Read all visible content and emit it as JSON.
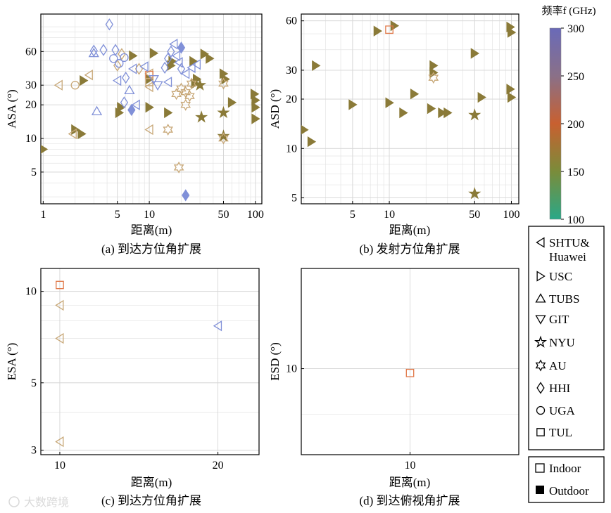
{
  "figure": {
    "colorbar": {
      "title": "频率f (GHz)",
      "ticks": [
        100,
        150,
        200,
        250,
        300
      ]
    },
    "marker_legend": [
      {
        "key": "shtu",
        "line1": "SHTU&",
        "line2": "Huawei"
      },
      {
        "key": "usc",
        "line1": "USC"
      },
      {
        "key": "tubs",
        "line1": "TUBS"
      },
      {
        "key": "git",
        "line1": "GIT"
      },
      {
        "key": "nyu",
        "line1": "NYU"
      },
      {
        "key": "au",
        "line1": "AU"
      },
      {
        "key": "hhi",
        "line1": "HHI"
      },
      {
        "key": "uga",
        "line1": "UGA"
      },
      {
        "key": "tul",
        "line1": "TUL"
      }
    ],
    "env_legend": [
      {
        "key": "indoor",
        "label": "Indoor"
      },
      {
        "key": "outdoor",
        "label": "Outdoor"
      }
    ],
    "watermark": "大数跨境"
  },
  "colors": {
    "olive": "#8a7a38",
    "blue": "#8090d8",
    "orange": "#e07848",
    "tan": "#c8a878"
  },
  "chart_data": [
    {
      "id": "a",
      "type": "scatter",
      "xscale": "log",
      "yscale": "log",
      "caption": "(a) 到达方位角扩展",
      "xlabel": "距离(m)",
      "ylabel": "ASA (°)",
      "xlim": [
        0.95,
        115
      ],
      "ylim": [
        2.6,
        130
      ],
      "xticks": [
        1,
        5,
        10,
        50,
        100
      ],
      "xtick_labels": [
        "1",
        "5",
        "10",
        "50",
        "100"
      ],
      "yticks": [
        5,
        10,
        20,
        30,
        60
      ],
      "ytick_labels": [
        "5",
        "10",
        "20",
        "30",
        "60"
      ],
      "points": [
        {
          "x": 1,
          "y": 8,
          "m": "usc",
          "c": "olive",
          "f": true
        },
        {
          "x": 2,
          "y": 12,
          "m": "usc",
          "c": "olive",
          "f": true
        },
        {
          "x": 2.3,
          "y": 11,
          "m": "usc",
          "c": "olive",
          "f": true
        },
        {
          "x": 2.4,
          "y": 33,
          "m": "usc",
          "c": "olive",
          "f": true
        },
        {
          "x": 5.2,
          "y": 17,
          "m": "usc",
          "c": "olive",
          "f": true
        },
        {
          "x": 5.4,
          "y": 19,
          "m": "usc",
          "c": "olive",
          "f": true
        },
        {
          "x": 7,
          "y": 55,
          "m": "usc",
          "c": "olive",
          "f": true
        },
        {
          "x": 10,
          "y": 19,
          "m": "usc",
          "c": "olive",
          "f": true
        },
        {
          "x": 11,
          "y": 58,
          "m": "usc",
          "c": "olive",
          "f": true
        },
        {
          "x": 15,
          "y": 17,
          "m": "usc",
          "c": "olive",
          "f": true
        },
        {
          "x": 16,
          "y": 45,
          "m": "usc",
          "c": "olive",
          "f": true
        },
        {
          "x": 16.5,
          "y": 49,
          "m": "usc",
          "c": "olive",
          "f": true
        },
        {
          "x": 26,
          "y": 49,
          "m": "usc",
          "c": "olive",
          "f": true
        },
        {
          "x": 27,
          "y": 31,
          "m": "usc",
          "c": "olive",
          "f": true
        },
        {
          "x": 28,
          "y": 34,
          "m": "usc",
          "c": "olive",
          "f": true
        },
        {
          "x": 33,
          "y": 57,
          "m": "usc",
          "c": "olive",
          "f": true
        },
        {
          "x": 37,
          "y": 52,
          "m": "usc",
          "c": "olive",
          "f": true
        },
        {
          "x": 50,
          "y": 38,
          "m": "usc",
          "c": "olive",
          "f": true
        },
        {
          "x": 52,
          "y": 34,
          "m": "usc",
          "c": "olive",
          "f": true
        },
        {
          "x": 60,
          "y": 21,
          "m": "usc",
          "c": "olive",
          "f": true
        },
        {
          "x": 98,
          "y": 25,
          "m": "usc",
          "c": "olive",
          "f": true
        },
        {
          "x": 100,
          "y": 22,
          "m": "usc",
          "c": "olive",
          "f": true
        },
        {
          "x": 100,
          "y": 19,
          "m": "usc",
          "c": "olive",
          "f": true
        },
        {
          "x": 100,
          "y": 15,
          "m": "usc",
          "c": "olive",
          "f": true
        },
        {
          "x": 10,
          "y": 34,
          "m": "usc",
          "c": "olive",
          "f": true
        },
        {
          "x": 30,
          "y": 30,
          "m": "nyu",
          "c": "olive",
          "f": true
        },
        {
          "x": 31,
          "y": 15.5,
          "m": "nyu",
          "c": "olive",
          "f": true
        },
        {
          "x": 50,
          "y": 17,
          "m": "nyu",
          "c": "olive",
          "f": true
        },
        {
          "x": 50,
          "y": 10.5,
          "m": "nyu",
          "c": "olive",
          "f": true
        },
        {
          "x": 1.4,
          "y": 30,
          "m": "shtu",
          "c": "tan",
          "f": false
        },
        {
          "x": 1.9,
          "y": 11,
          "m": "shtu",
          "c": "tan",
          "f": false
        },
        {
          "x": 2.7,
          "y": 37,
          "m": "shtu",
          "c": "tan",
          "f": false
        },
        {
          "x": 10,
          "y": 12,
          "m": "shtu",
          "c": "tan",
          "f": false
        },
        {
          "x": 10,
          "y": 38,
          "m": "shtu",
          "c": "tan",
          "f": false
        },
        {
          "x": 10,
          "y": 29,
          "m": "shtu",
          "c": "tan",
          "f": false
        },
        {
          "x": 5,
          "y": 45,
          "m": "hhi",
          "c": "tan",
          "f": false
        },
        {
          "x": 5.5,
          "y": 57,
          "m": "hhi",
          "c": "tan",
          "f": false
        },
        {
          "x": 8,
          "y": 42,
          "m": "hhi",
          "c": "tan",
          "f": false
        },
        {
          "x": 2,
          "y": 30,
          "m": "uga",
          "c": "tan",
          "f": false
        },
        {
          "x": 10,
          "y": 37,
          "m": "tul",
          "c": "orange",
          "f": false
        },
        {
          "x": 10,
          "y": 32,
          "m": "tul",
          "c": "tan",
          "f": false
        },
        {
          "x": 18,
          "y": 25,
          "m": "au",
          "c": "tan",
          "f": false
        },
        {
          "x": 22,
          "y": 26,
          "m": "au",
          "c": "tan",
          "f": false
        },
        {
          "x": 20,
          "y": 28,
          "m": "au",
          "c": "tan",
          "f": false
        },
        {
          "x": 22,
          "y": 20,
          "m": "au",
          "c": "tan",
          "f": false
        },
        {
          "x": 24,
          "y": 24,
          "m": "au",
          "c": "tan",
          "f": false
        },
        {
          "x": 15,
          "y": 12,
          "m": "au",
          "c": "tan",
          "f": false
        },
        {
          "x": 19,
          "y": 5.5,
          "m": "au",
          "c": "tan",
          "f": false
        },
        {
          "x": 25,
          "y": 31,
          "m": "au",
          "c": "tan",
          "f": false
        },
        {
          "x": 50,
          "y": 31,
          "m": "au",
          "c": "tan",
          "f": false
        },
        {
          "x": 50,
          "y": 10,
          "m": "au",
          "c": "tan",
          "f": false
        },
        {
          "x": 4.2,
          "y": 105,
          "m": "hhi",
          "c": "blue",
          "f": false
        },
        {
          "x": 3,
          "y": 61,
          "m": "hhi",
          "c": "blue",
          "f": false
        },
        {
          "x": 3.7,
          "y": 62,
          "m": "hhi",
          "c": "blue",
          "f": false
        },
        {
          "x": 3,
          "y": 58,
          "m": "tubs",
          "c": "blue",
          "f": false
        },
        {
          "x": 4.8,
          "y": 62,
          "m": "hhi",
          "c": "blue",
          "f": false
        },
        {
          "x": 4.6,
          "y": 52,
          "m": "uga",
          "c": "blue",
          "f": false
        },
        {
          "x": 5.2,
          "y": 47,
          "m": "uga",
          "c": "blue",
          "f": false
        },
        {
          "x": 5.8,
          "y": 53,
          "m": "uga",
          "c": "blue",
          "f": false
        },
        {
          "x": 5,
          "y": 33,
          "m": "shtu",
          "c": "blue",
          "f": false
        },
        {
          "x": 6,
          "y": 35,
          "m": "hhi",
          "c": "blue",
          "f": false
        },
        {
          "x": 6.5,
          "y": 27,
          "m": "tubs",
          "c": "blue",
          "f": false
        },
        {
          "x": 5.8,
          "y": 21,
          "m": "hhi",
          "c": "blue",
          "f": false
        },
        {
          "x": 7.5,
          "y": 20,
          "m": "shtu",
          "c": "blue",
          "f": false
        },
        {
          "x": 3.2,
          "y": 17.5,
          "m": "tubs",
          "c": "blue",
          "f": false
        },
        {
          "x": 7,
          "y": 42,
          "m": "shtu",
          "c": "blue",
          "f": false
        },
        {
          "x": 9,
          "y": 44,
          "m": "shtu",
          "c": "blue",
          "f": false
        },
        {
          "x": 11,
          "y": 34,
          "m": "git",
          "c": "blue",
          "f": false
        },
        {
          "x": 12,
          "y": 30,
          "m": "git",
          "c": "blue",
          "f": false
        },
        {
          "x": 14,
          "y": 43,
          "m": "hhi",
          "c": "blue",
          "f": false
        },
        {
          "x": 15,
          "y": 52,
          "m": "hhi",
          "c": "blue",
          "f": false
        },
        {
          "x": 15,
          "y": 32,
          "m": "shtu",
          "c": "blue",
          "f": false
        },
        {
          "x": 16,
          "y": 60,
          "m": "hhi",
          "c": "blue",
          "f": false
        },
        {
          "x": 17,
          "y": 70,
          "m": "shtu",
          "c": "blue",
          "f": false
        },
        {
          "x": 18,
          "y": 55,
          "m": "shtu",
          "c": "blue",
          "f": false
        },
        {
          "x": 19,
          "y": 48,
          "m": "shtu",
          "c": "blue",
          "f": false
        },
        {
          "x": 20,
          "y": 42,
          "m": "hhi",
          "c": "blue",
          "f": false
        },
        {
          "x": 22,
          "y": 38,
          "m": "shtu",
          "c": "blue",
          "f": false
        },
        {
          "x": 25,
          "y": 43,
          "m": "shtu",
          "c": "blue",
          "f": false
        },
        {
          "x": 28,
          "y": 46,
          "m": "shtu",
          "c": "blue",
          "f": false
        },
        {
          "x": 20,
          "y": 65,
          "m": "hhi",
          "c": "blue",
          "f": true
        },
        {
          "x": 6.8,
          "y": 18,
          "m": "hhi",
          "c": "blue",
          "f": true
        },
        {
          "x": 22,
          "y": 3.1,
          "m": "hhi",
          "c": "blue",
          "f": true
        }
      ]
    },
    {
      "id": "b",
      "type": "scatter",
      "xscale": "log",
      "yscale": "log",
      "caption": "(b) 发射方位角扩展",
      "xlabel": "距离(m)",
      "ylabel": "ASD (°)",
      "xlim": [
        1.9,
        115
      ],
      "ylim": [
        4.6,
        66
      ],
      "xticks": [
        5,
        10,
        50,
        100
      ],
      "xtick_labels": [
        "5",
        "10",
        "50",
        "100"
      ],
      "yticks": [
        5,
        10,
        20,
        30,
        60
      ],
      "ytick_labels": [
        "5",
        "10",
        "20",
        "30",
        "60"
      ],
      "points": [
        {
          "x": 2,
          "y": 13,
          "m": "usc",
          "c": "olive",
          "f": true
        },
        {
          "x": 2.3,
          "y": 11,
          "m": "usc",
          "c": "olive",
          "f": true
        },
        {
          "x": 2.5,
          "y": 32,
          "m": "usc",
          "c": "olive",
          "f": true
        },
        {
          "x": 5,
          "y": 18.5,
          "m": "usc",
          "c": "olive",
          "f": true
        },
        {
          "x": 8,
          "y": 52,
          "m": "usc",
          "c": "olive",
          "f": true
        },
        {
          "x": 10,
          "y": 19,
          "m": "usc",
          "c": "olive",
          "f": true
        },
        {
          "x": 11,
          "y": 56,
          "m": "usc",
          "c": "olive",
          "f": true
        },
        {
          "x": 13,
          "y": 16.5,
          "m": "usc",
          "c": "olive",
          "f": true
        },
        {
          "x": 16,
          "y": 21.5,
          "m": "usc",
          "c": "olive",
          "f": true
        },
        {
          "x": 22,
          "y": 17.5,
          "m": "usc",
          "c": "olive",
          "f": true
        },
        {
          "x": 23,
          "y": 32,
          "m": "usc",
          "c": "olive",
          "f": true
        },
        {
          "x": 23,
          "y": 29,
          "m": "usc",
          "c": "olive",
          "f": true
        },
        {
          "x": 27,
          "y": 16.5,
          "m": "usc",
          "c": "olive",
          "f": true
        },
        {
          "x": 30,
          "y": 16.5,
          "m": "usc",
          "c": "olive",
          "f": true
        },
        {
          "x": 50,
          "y": 38,
          "m": "usc",
          "c": "olive",
          "f": true
        },
        {
          "x": 57,
          "y": 20.5,
          "m": "usc",
          "c": "olive",
          "f": true
        },
        {
          "x": 98,
          "y": 55,
          "m": "usc",
          "c": "olive",
          "f": true
        },
        {
          "x": 100,
          "y": 51,
          "m": "usc",
          "c": "olive",
          "f": true
        },
        {
          "x": 98,
          "y": 23,
          "m": "usc",
          "c": "olive",
          "f": true
        },
        {
          "x": 100,
          "y": 20.5,
          "m": "usc",
          "c": "olive",
          "f": true
        },
        {
          "x": 50,
          "y": 16,
          "m": "nyu",
          "c": "olive",
          "f": true
        },
        {
          "x": 50,
          "y": 5.3,
          "m": "nyu",
          "c": "olive",
          "f": true
        },
        {
          "x": 23,
          "y": 27,
          "m": "au",
          "c": "tan",
          "f": false
        },
        {
          "x": 10,
          "y": 53,
          "m": "tul",
          "c": "orange",
          "f": false
        }
      ]
    },
    {
      "id": "c",
      "type": "scatter",
      "xscale": "linear",
      "yscale": "log",
      "caption": "(c) 到达方位角扩展",
      "xlabel": "距离(m)",
      "ylabel": "ESA (°)",
      "xlim": [
        8.8,
        22.6
      ],
      "ylim": [
        2.9,
        11.9
      ],
      "xticks": [
        10,
        20
      ],
      "xtick_labels": [
        "10",
        "20"
      ],
      "yticks": [
        3,
        5,
        10
      ],
      "ytick_labels": [
        "3",
        "5",
        "10"
      ],
      "points": [
        {
          "x": 10,
          "y": 10.5,
          "m": "tul",
          "c": "orange",
          "f": false
        },
        {
          "x": 10,
          "y": 9.0,
          "m": "shtu",
          "c": "tan",
          "f": false
        },
        {
          "x": 10,
          "y": 7.0,
          "m": "shtu",
          "c": "tan",
          "f": false
        },
        {
          "x": 10,
          "y": 3.2,
          "m": "shtu",
          "c": "tan",
          "f": false
        },
        {
          "x": 20,
          "y": 7.7,
          "m": "shtu",
          "c": "blue",
          "f": false
        }
      ]
    },
    {
      "id": "d",
      "type": "scatter",
      "xscale": "linear",
      "yscale": "log",
      "caption": "(d) 到达俯视角扩展",
      "xlabel": "距离(m)",
      "ylabel": "ESD (°)",
      "xlim": [
        5.0,
        15.0
      ],
      "ylim": [
        8.2,
        12.6
      ],
      "xticks": [
        10
      ],
      "xtick_labels": [
        "10"
      ],
      "yticks": [
        10
      ],
      "ytick_labels": [
        "10"
      ],
      "points": [
        {
          "x": 10,
          "y": 9.9,
          "m": "tul",
          "c": "orange",
          "f": false
        }
      ]
    }
  ]
}
